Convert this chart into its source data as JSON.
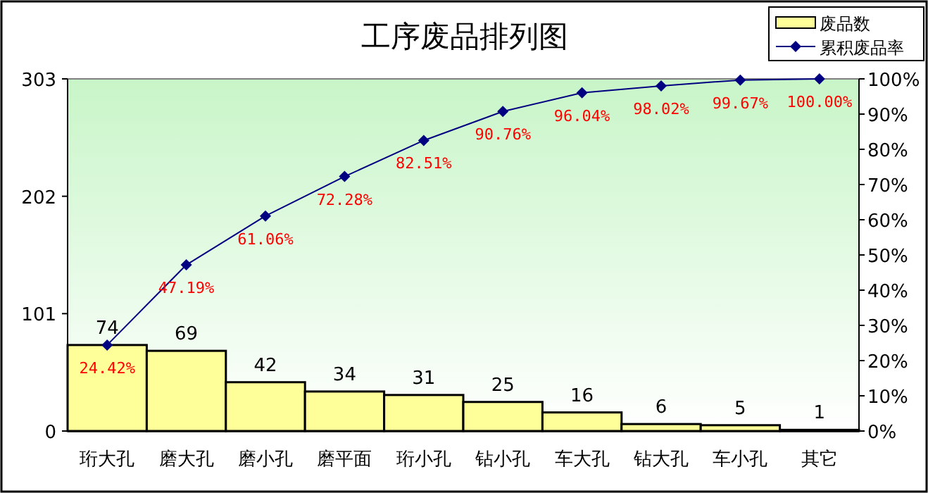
{
  "chart_data": {
    "type": "bar",
    "title": "工序废品排列图",
    "categories": [
      "珩大孔",
      "磨大孔",
      "磨小孔",
      "磨平面",
      "珩小孔",
      "钻小孔",
      "车大孔",
      "钻大孔",
      "车小孔",
      "其它"
    ],
    "series": [
      {
        "name": "废品数",
        "color": "#ffff99",
        "values": [
          74,
          69,
          42,
          34,
          31,
          25,
          16,
          6,
          5,
          1
        ],
        "value_labels": [
          "74",
          "69",
          "42",
          "34",
          "31",
          "25",
          "16",
          "6",
          "5",
          "1"
        ]
      },
      {
        "name": "累积废品率",
        "type": "line",
        "axis": "y2",
        "color": "#000080",
        "values": [
          24.42,
          47.19,
          61.06,
          72.28,
          82.51,
          90.76,
          96.04,
          98.02,
          99.67,
          100.0
        ],
        "value_labels": [
          "24.42%",
          "47.19%",
          "61.06%",
          "72.28%",
          "82.51%",
          "90.76%",
          "96.04%",
          "98.02%",
          "99.67%",
          "100.00%"
        ]
      }
    ],
    "ylim": [
      0,
      303
    ],
    "yticks": [
      0,
      101,
      202,
      303
    ],
    "y2lim": [
      0,
      100
    ],
    "y2ticks": [
      {
        "value": 0,
        "label": "0%"
      },
      {
        "value": 10,
        "label": "10%"
      },
      {
        "value": 20,
        "label": "20%"
      },
      {
        "value": 30,
        "label": "30%"
      },
      {
        "value": 40,
        "label": "40%"
      },
      {
        "value": 50,
        "label": "50%"
      },
      {
        "value": 60,
        "label": "60%"
      },
      {
        "value": 70,
        "label": "70%"
      },
      {
        "value": 80,
        "label": "80%"
      },
      {
        "value": 90,
        "label": "90%"
      },
      {
        "value": 100,
        "label": "100%"
      }
    ],
    "legend": "top right",
    "marker": "diamond",
    "grid": false
  }
}
